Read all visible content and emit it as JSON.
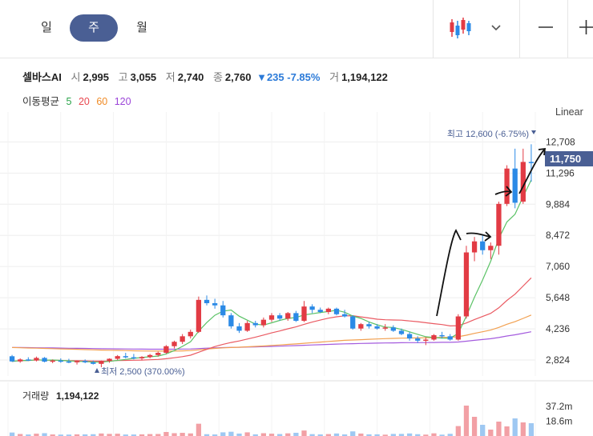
{
  "tabs": [
    {
      "label": "일",
      "active": false
    },
    {
      "label": "주",
      "active": true
    },
    {
      "label": "월",
      "active": false
    }
  ],
  "toolbar": {
    "chart_type_icon": "candlestick-icon",
    "dropdown_icon": "chevron-down-icon",
    "zoom_out_icon": "minus-icon",
    "zoom_in_icon": "plus-icon"
  },
  "stock": {
    "name": "셀바스AI",
    "open_label": "시",
    "open": "2,995",
    "high_label": "고",
    "high": "3,055",
    "low_label": "저",
    "low": "2,740",
    "close_label": "종",
    "close": "2,760",
    "change": "▼235",
    "change_pct": "-7.85%",
    "volume_label": "거",
    "volume": "1,194,122"
  },
  "moving_average": {
    "label": "이동평균",
    "periods": [
      {
        "text": "5",
        "color": "#2aa44a"
      },
      {
        "text": "20",
        "color": "#e8474f"
      },
      {
        "text": "60",
        "color": "#f08a24"
      },
      {
        "text": "120",
        "color": "#9b44d8"
      }
    ]
  },
  "scale_label": "Linear",
  "colors": {
    "up": "#e23b44",
    "down": "#2b8ae6",
    "price_tag": "#4a5f94",
    "ma5": "#5bc266",
    "ma20": "#ea5a62",
    "ma60": "#f2a050",
    "ma120": "#a45bde"
  },
  "chart_data": {
    "type": "candlestick",
    "yaxis_ticks": [
      "12,708",
      "11,296",
      "9,884",
      "8,472",
      "7,060",
      "5,648",
      "4,236",
      "2,824"
    ],
    "yaxis_tick_values": [
      12708,
      11296,
      9884,
      8472,
      7060,
      5648,
      4236,
      2824
    ],
    "ylim": [
      2100,
      13700
    ],
    "current_price": "11,750",
    "current_price_value": 11750,
    "max_annotation": "최고 12,600 (-6.75%)",
    "min_annotation": "최저 2,500 (370.00%)",
    "candles": [
      [
        2995,
        3055,
        2740,
        2760
      ],
      [
        2760,
        2900,
        2700,
        2850
      ],
      [
        2850,
        2950,
        2780,
        2800
      ],
      [
        2800,
        2980,
        2760,
        2920
      ],
      [
        2920,
        2960,
        2720,
        2750
      ],
      [
        2750,
        2850,
        2680,
        2800
      ],
      [
        2800,
        2900,
        2700,
        2760
      ],
      [
        2760,
        2880,
        2680,
        2720
      ],
      [
        2720,
        2800,
        2620,
        2780
      ],
      [
        2780,
        2850,
        2680,
        2720
      ],
      [
        2720,
        2800,
        2620,
        2650
      ],
      [
        2650,
        2800,
        2500,
        2780
      ],
      [
        2780,
        2900,
        2700,
        2880
      ],
      [
        2880,
        3050,
        2820,
        3000
      ],
      [
        3000,
        3150,
        2900,
        2950
      ],
      [
        2950,
        3100,
        2850,
        2900
      ],
      [
        2900,
        3000,
        2820,
        2960
      ],
      [
        2960,
        3100,
        2900,
        3050
      ],
      [
        3050,
        3200,
        2980,
        3150
      ],
      [
        3150,
        3500,
        3100,
        3450
      ],
      [
        3450,
        3700,
        3350,
        3650
      ],
      [
        3650,
        4000,
        3550,
        3900
      ],
      [
        3900,
        4200,
        3800,
        4100
      ],
      [
        4100,
        5700,
        4050,
        5550
      ],
      [
        5550,
        5750,
        5300,
        5400
      ],
      [
        5400,
        5600,
        5150,
        5300
      ],
      [
        5300,
        5500,
        4750,
        4850
      ],
      [
        4850,
        4950,
        4250,
        4350
      ],
      [
        4350,
        4500,
        4050,
        4150
      ],
      [
        4150,
        4600,
        4100,
        4500
      ],
      [
        4500,
        4600,
        4300,
        4400
      ],
      [
        4400,
        4750,
        4300,
        4650
      ],
      [
        4650,
        4950,
        4550,
        4850
      ],
      [
        4850,
        4950,
        4600,
        4700
      ],
      [
        4700,
        5000,
        4600,
        4950
      ],
      [
        4950,
        5050,
        4550,
        4600
      ],
      [
        4600,
        5500,
        4550,
        5250
      ],
      [
        5250,
        5350,
        4950,
        5100
      ],
      [
        5100,
        5200,
        4950,
        5000
      ],
      [
        5000,
        5200,
        4900,
        5150
      ],
      [
        5150,
        5200,
        4850,
        4900
      ],
      [
        4900,
        5100,
        4750,
        4800
      ],
      [
        4800,
        4850,
        4200,
        4250
      ],
      [
        4250,
        4500,
        4150,
        4450
      ],
      [
        4450,
        4550,
        4250,
        4350
      ],
      [
        4350,
        4450,
        4200,
        4250
      ],
      [
        4250,
        4450,
        4150,
        4300
      ],
      [
        4300,
        4400,
        4100,
        4150
      ],
      [
        4150,
        4250,
        3950,
        4000
      ],
      [
        4000,
        4100,
        3700,
        3800
      ],
      [
        3800,
        3900,
        3600,
        3700
      ],
      [
        3700,
        3850,
        3500,
        3750
      ],
      [
        3750,
        4000,
        3700,
        3950
      ],
      [
        3950,
        4100,
        3800,
        3900
      ],
      [
        3900,
        4000,
        3700,
        3750
      ],
      [
        3750,
        4900,
        3700,
        4800
      ],
      [
        4800,
        8000,
        4700,
        7700
      ],
      [
        7700,
        8400,
        7300,
        8200
      ],
      [
        8200,
        8500,
        7600,
        7800
      ],
      [
        7800,
        8150,
        7400,
        8000
      ],
      [
        8000,
        10000,
        7600,
        9900
      ],
      [
        9900,
        11650,
        9800,
        11500
      ],
      [
        11500,
        12400,
        9700,
        9950
      ],
      [
        10000,
        12400,
        9900,
        11800
      ],
      [
        11800,
        12600,
        10900,
        11750
      ]
    ],
    "volume": {
      "label": "거래량",
      "value": "1,194,122",
      "ticks": [
        "37.2m",
        "18.6m"
      ],
      "tick_values": [
        37.2,
        18.6
      ],
      "ymax": 55
    }
  }
}
